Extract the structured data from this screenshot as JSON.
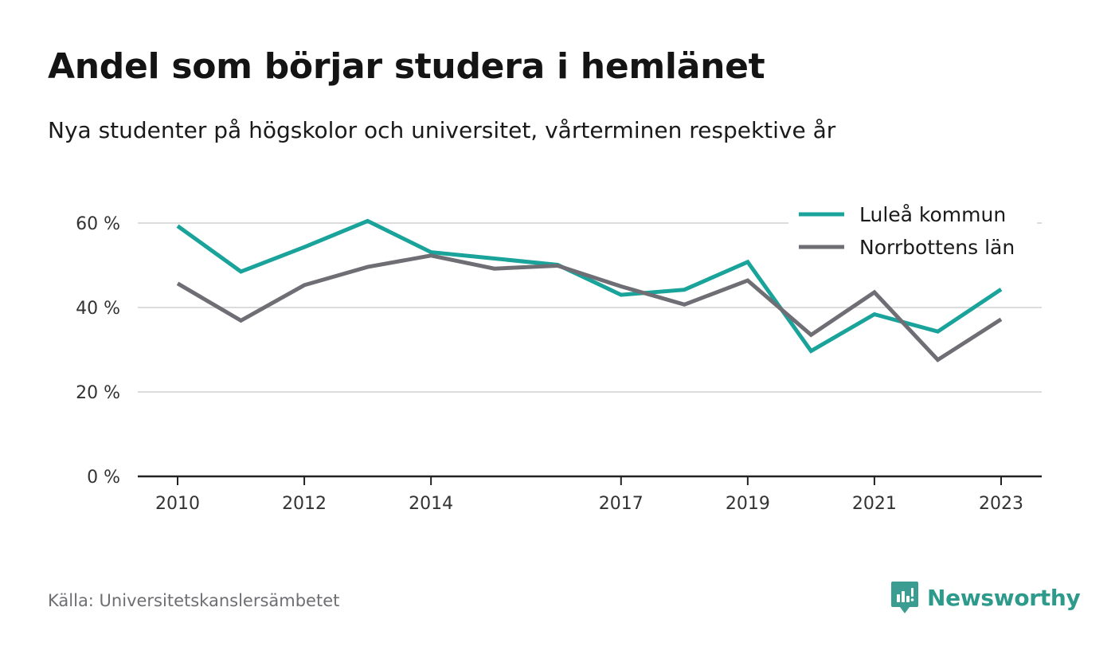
{
  "title": "Andel som börjar studera i hemlänet",
  "subtitle": "Nya studenter på högskolor och universitet, vårterminen respektive år",
  "source": "Källa: Universitetskanslersämbetet",
  "brand": {
    "name": "Newsworthy",
    "icon": "newsworthy-logo-icon",
    "color": "#2e9a8c"
  },
  "chart_data": {
    "type": "line",
    "title": "Andel som börjar studera i hemlänet",
    "subtitle": "Nya studenter på högskolor och universitet, vårterminen respektive år",
    "xlabel": "",
    "ylabel": "",
    "x": [
      2010,
      2011,
      2012,
      2013,
      2014,
      2015,
      2016,
      2017,
      2018,
      2019,
      2020,
      2021,
      2022,
      2023
    ],
    "x_ticks": [
      2010,
      2012,
      2014,
      2017,
      2019,
      2021,
      2023
    ],
    "xlim": [
      2009.69,
      2023.31
    ],
    "y_ticks": [
      0,
      20,
      40,
      60
    ],
    "y_tick_suffix": " %",
    "ylim": [
      0,
      60
    ],
    "grid": true,
    "legend_position": "top-right",
    "series": [
      {
        "name": "Luleå kommun",
        "color": "#1aa39a",
        "values": [
          59.3,
          48.5,
          54.3,
          60.5,
          53.1,
          51.6,
          50.1,
          43.0,
          44.2,
          50.8,
          29.7,
          38.4,
          34.3,
          44.3
        ]
      },
      {
        "name": "Norrbottens län",
        "color": "#6f6e75",
        "values": [
          45.7,
          36.9,
          45.3,
          49.6,
          52.3,
          49.2,
          49.9,
          45.0,
          40.7,
          46.4,
          33.5,
          43.6,
          27.6,
          37.2
        ]
      }
    ]
  }
}
